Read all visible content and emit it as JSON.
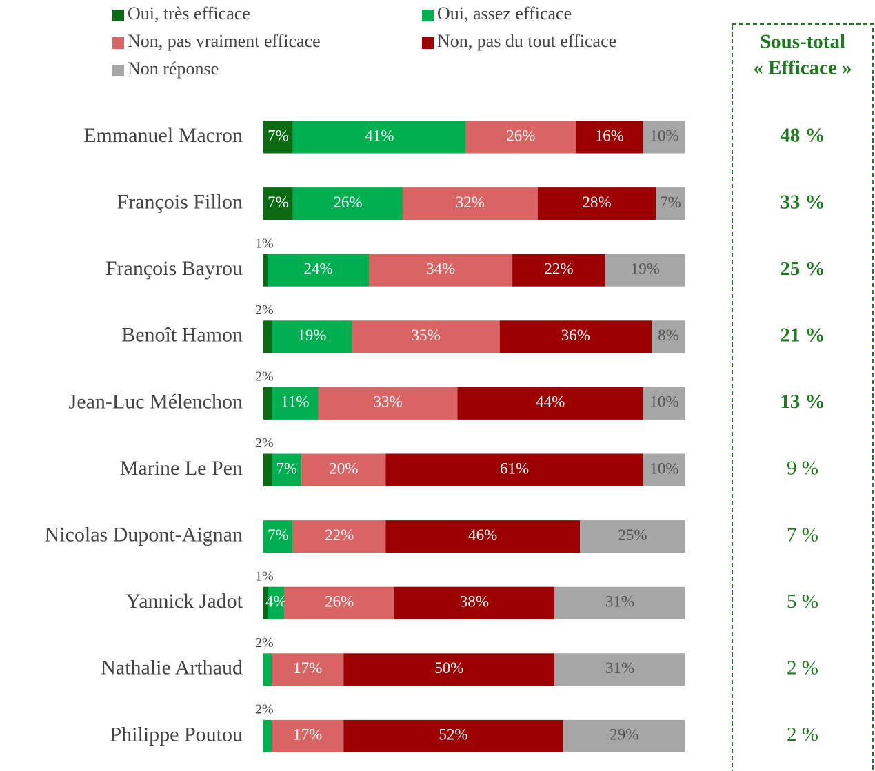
{
  "chart_data": {
    "type": "stacked_barh",
    "categories": [
      "Emmanuel Macron",
      "François Fillon",
      "François Bayrou",
      "Benoît Hamon",
      "Jean-Luc Mélenchon",
      "Marine Le Pen",
      "Nicolas Dupont-Aignan",
      "Yannick Jadot",
      "Nathalie Arthaud",
      "Philippe Poutou"
    ],
    "xlim": [
      0,
      100
    ],
    "series": [
      {
        "name": "Oui, très efficace",
        "color": "#0b6b12",
        "values": [
          7,
          7,
          1,
          2,
          2,
          2,
          null,
          1,
          null,
          null
        ],
        "value_labels": [
          "7%",
          "7%",
          "1%",
          "2%",
          "2%",
          "2%",
          null,
          "1%",
          null,
          null
        ]
      },
      {
        "name": "Oui, assez efficace",
        "color": "#00b050",
        "values": [
          41,
          26,
          24,
          19,
          11,
          7,
          7,
          4,
          2,
          2
        ],
        "value_labels": [
          "41%",
          "26%",
          "24%",
          "19%",
          "11%",
          "7%",
          "7%",
          "4%",
          "2%",
          "2%"
        ]
      },
      {
        "name": "Non, pas vraiment efficace",
        "color": "#d96464",
        "values": [
          26,
          32,
          34,
          35,
          33,
          20,
          22,
          26,
          17,
          17
        ],
        "value_labels": [
          "26%",
          "32%",
          "34%",
          "35%",
          "33%",
          "20%",
          "22%",
          "26%",
          "17%",
          "17%"
        ]
      },
      {
        "name": "Non, pas du tout efficace",
        "color": "#9c0000",
        "values": [
          16,
          28,
          22,
          36,
          44,
          61,
          46,
          38,
          50,
          52
        ],
        "value_labels": [
          "16%",
          "28%",
          "22%",
          "36%",
          "44%",
          "61%",
          "46%",
          "38%",
          "50%",
          "52%"
        ]
      },
      {
        "name": "Non réponse",
        "color": "#a6a6a6",
        "values": [
          10,
          7,
          19,
          8,
          10,
          10,
          25,
          31,
          31,
          29
        ],
        "value_labels": [
          "10%",
          "7%",
          "19%",
          "8%",
          "10%",
          "10%",
          "25%",
          "31%",
          "31%",
          "29%"
        ]
      }
    ],
    "subtotal_title": [
      "Sous-total",
      "« Efficace »"
    ],
    "subtotal_color": "#1e7a1e",
    "subtotal": [
      48,
      33,
      25,
      21,
      13,
      9,
      7,
      5,
      2,
      2
    ],
    "subtotal_labels": [
      "48 %",
      "33 %",
      "25 %",
      "21 %",
      "13 %",
      "9 %",
      "7 %",
      "5 %",
      "2 %",
      "2 %"
    ],
    "subtotal_bold": [
      true,
      true,
      true,
      true,
      true,
      false,
      false,
      false,
      false,
      false
    ]
  }
}
